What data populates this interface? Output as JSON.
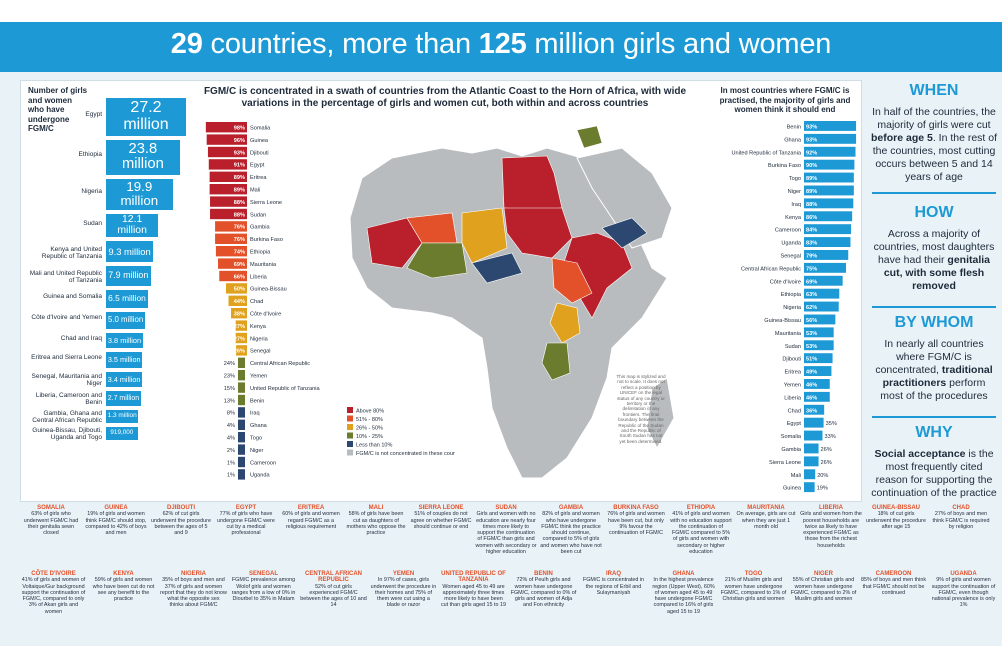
{
  "title": {
    "bold1": "29",
    "text1": " countries, more than ",
    "bold2": "125",
    "text2": " million girls and women"
  },
  "left_panel": {
    "heading": "Number of girls and women who have undergone FGM/C",
    "items": [
      {
        "country": "Egypt",
        "value": "27.2 million",
        "v": 27.2
      },
      {
        "country": "Ethiopia",
        "value": "23.8 million",
        "v": 23.8
      },
      {
        "country": "Nigeria",
        "value": "19.9 million",
        "v": 19.9
      },
      {
        "country": "Sudan",
        "value": "12.1 million",
        "v": 12.1
      },
      {
        "country": "Kenya and United Republic of Tanzania",
        "value": "9.3 million",
        "v": 9.3
      },
      {
        "country": "Mali and United Republic of Tanzania",
        "value": "7.9 million",
        "v": 7.9
      },
      {
        "country": "Guinea and Somalia",
        "value": "6.5 million",
        "v": 6.5
      },
      {
        "country": "Côte d'Ivoire and Yemen",
        "value": "5.0 million",
        "v": 5.0
      },
      {
        "country": "Chad and Iraq",
        "value": "3.8 million",
        "v": 3.8
      },
      {
        "country": "Eritrea and Sierra Leone",
        "value": "3.5 million",
        "v": 3.5
      },
      {
        "country": "Senegal, Mauritania and Niger",
        "value": "3.4 million",
        "v": 3.4
      },
      {
        "country": "Liberia, Cameroon and Benin",
        "value": "2.7 million",
        "v": 2.7
      },
      {
        "country": "Gambia, Ghana and Central African Republic",
        "value": "1.3 million",
        "v": 1.3
      },
      {
        "country": "Guinea-Bissau, Djibouti, Uganda and Togo",
        "value": "919,000",
        "v": 0.919
      }
    ]
  },
  "middle_panel": {
    "heading": "FGM/C is concentrated in a swath of countries from the Atlantic Coast to the Horn of Africa, with wide variations in the percentage of girls and women cut, both within and across countries",
    "legend": [
      "Above 80%",
      "51% - 80%",
      "26% - 50%",
      "10% - 25%",
      "Less than 10%",
      "FGM/C is not concentrated in these countries"
    ],
    "map_note": "This map is stylized and not to scale. It does not reflect a position by UNICEF on the legal status of any country or territory or the delimitation of any frontiers. The final boundary between the Republic of the Sudan and the Republic of South Sudan has not yet been determined."
  },
  "right_panel": {
    "heading": "In most countries where FGM/C is practised, the majority of girls and women think it should end"
  },
  "colors": {
    "above80": "#b9202b",
    "51to80": "#e3512a",
    "26to50": "#e0a21e",
    "10to25": "#6b7c2f",
    "lt10": "#2c4870",
    "none": "#b9bcbf",
    "accent": "#1d9ad6"
  },
  "chart_data": [
    {
      "type": "bar",
      "title": "FGM/C prevalence among girls and women",
      "categories": [
        "Somalia",
        "Guinea",
        "Djibouti",
        "Egypt",
        "Eritrea",
        "Mali",
        "Sierra Leone",
        "Sudan",
        "Gambia",
        "Burkina Faso",
        "Ethiopia",
        "Mauritania",
        "Liberia",
        "Guinea-Bissau",
        "Chad",
        "Côte d'Ivoire",
        "Kenya",
        "Nigeria",
        "Senegal",
        "Central African Republic",
        "Yemen",
        "United Republic of Tanzania",
        "Benin",
        "Iraq",
        "Ghana",
        "Togo",
        "Niger",
        "Cameroon",
        "Uganda"
      ],
      "values": [
        98,
        96,
        93,
        91,
        89,
        89,
        88,
        88,
        76,
        76,
        74,
        69,
        66,
        50,
        44,
        38,
        27,
        27,
        26,
        24,
        23,
        15,
        13,
        8,
        4,
        4,
        2,
        1,
        1
      ]
    },
    {
      "type": "bar",
      "title": "Percentage of girls and women who think FGM/C should end",
      "categories": [
        "Benin",
        "Ghana",
        "United Republic of Tanzania",
        "Burkina Faso",
        "Togo",
        "Niger",
        "Iraq",
        "Kenya",
        "Cameroon",
        "Uganda",
        "Senegal",
        "Central African Republic",
        "Côte d'Ivoire",
        "Ethiopia",
        "Nigeria",
        "Guinea-Bissau",
        "Mauritania",
        "Sudan",
        "Djibouti",
        "Eritrea",
        "Yemen",
        "Liberia",
        "Chad",
        "Egypt",
        "Somalia",
        "Gambia",
        "Sierra Leone",
        "Mali",
        "Guinea"
      ],
      "values": [
        93,
        93,
        92,
        90,
        89,
        89,
        88,
        86,
        84,
        83,
        79,
        75,
        69,
        63,
        62,
        56,
        53,
        53,
        51,
        49,
        46,
        46,
        36,
        35,
        33,
        26,
        26,
        20,
        19
      ]
    }
  ],
  "sidebar": [
    {
      "heading": "WHEN",
      "text_a": "In half of the countries, the majority of girls were cut ",
      "bold": "before age 5",
      "text_b": ". In the rest of the countries, most cutting occurs between 5 and 14 years of age"
    },
    {
      "heading": "HOW",
      "text_a": "Across a majority of countries, most daughters have had their ",
      "bold": "genitalia cut, with some flesh removed",
      "text_b": ""
    },
    {
      "heading": "BY WHOM",
      "text_a": "In nearly all countries where FGM/C is concentrated, ",
      "bold": "traditional practitioners",
      "text_b": " perform most of the procedures"
    },
    {
      "heading": "WHY",
      "text_a": "",
      "bold": "Social acceptance",
      "text_b": " is the most frequently cited reason for supporting the continuation of the practice"
    }
  ],
  "notes_row1": [
    {
      "country": "SOMALIA",
      "text": "63% of girls who underwent FGM/C had their genitalia sewn closed"
    },
    {
      "country": "GUINEA",
      "text": "19% of girls and women think FGM/C should stop, compared to 42% of boys and men"
    },
    {
      "country": "DJIBOUTI",
      "text": "62% of cut girls underwent the procedure between the ages of 5 and 9"
    },
    {
      "country": "EGYPT",
      "text": "77% of girls who have undergone FGM/C were cut by a medical professional"
    },
    {
      "country": "ERITREA",
      "text": "60% of girls and women regard FGM/C as a religious requirement"
    },
    {
      "country": "MALI",
      "text": "58% of girls have been cut as daughters of mothers who oppose the practice"
    },
    {
      "country": "SIERRA LEONE",
      "text": "51% of couples do not agree on whether FGM/C should continue or end"
    },
    {
      "country": "SUDAN",
      "text": "Girls and women with no education are nearly four times more likely to support the continuation of FGM/C than girls and women with secondary or higher education"
    },
    {
      "country": "GAMBIA",
      "text": "82% of girls and women who have undergone FGM/C think the practice should continue, compared to 5% of girls and women who have not been cut"
    },
    {
      "country": "BURKINA FASO",
      "text": "76% of girls and women have been cut, but only 9% favour the continuation of FGM/C"
    },
    {
      "country": "ETHIOPIA",
      "text": "41% of girls and women with no education support the continuation of FGM/C compared to 5% of girls and women with secondary or higher education"
    },
    {
      "country": "MAURITANIA",
      "text": "On average, girls are cut when they are just 1 month old"
    },
    {
      "country": "LIBERIA",
      "text": "Girls and women from the poorest households are twice as likely to have experienced FGM/C as those from the richest households"
    },
    {
      "country": "GUINEA-BISSAU",
      "text": "18% of cut girls underwent the procedure after age 15"
    },
    {
      "country": "CHAD",
      "text": "27% of boys and men think FGM/C is required by religion"
    }
  ],
  "notes_row2": [
    {
      "country": "CÔTE D'IVOIRE",
      "text": "41% of girls and women of Voltaique/Gur background support the continuation of FGM/C, compared to only 3% of Akan girls and women"
    },
    {
      "country": "KENYA",
      "text": "59% of girls and women who have been cut do not see any benefit to the practice"
    },
    {
      "country": "NIGERIA",
      "text": "35% of boys and men and 37% of girls and women report that they do not know what the opposite sex thinks about FGM/C"
    },
    {
      "country": "SENEGAL",
      "text": "FGM/C prevalence among Wolof girls and women ranges from a low of 0% in Diourbel to 35% in Matam"
    },
    {
      "country": "CENTRAL AFRICAN REPUBLIC",
      "text": "52% of cut girls experienced FGM/C between the ages of 10 and 14"
    },
    {
      "country": "YEMEN",
      "text": "In 97% of cases, girls underwent the procedure in their homes and 75% of them were cut using a blade or razor"
    },
    {
      "country": "UNITED REPUBLIC OF TANZANIA",
      "text": "Women aged 45 to 49 are approximately three times more likely to have been cut than girls aged 15 to 19"
    },
    {
      "country": "BENIN",
      "text": "72% of Peulh girls and women have undergone FGM/C, compared to 0% of girls and women of Adja and Fon ethnicity"
    },
    {
      "country": "IRAQ",
      "text": "FGM/C is concentrated in the regions of Erbil and Sulaymaniyah"
    },
    {
      "country": "GHANA",
      "text": "In the highest prevalence region (Upper West), 60% of women aged 45 to 49 have undergone FGM/C compared to 16% of girls aged 15 to 19"
    },
    {
      "country": "TOGO",
      "text": "21% of Muslim girls and women have undergone FGM/C, compared to 1% of Christian girls and women"
    },
    {
      "country": "NIGER",
      "text": "55% of Christian girls and women have undergone FGM/C, compared to 2% of Muslim girls and women"
    },
    {
      "country": "CAMEROON",
      "text": "85% of boys and men think that FGM/C should not be continued"
    },
    {
      "country": "UGANDA",
      "text": "9% of girls and women support the continuation of FGM/C, even though national prevalence is only 1%"
    }
  ]
}
